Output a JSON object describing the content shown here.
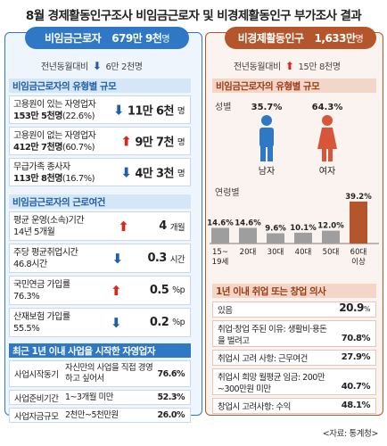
{
  "title": "8월 경제활동인구조사 비임금근로자 및 비경제활동인구 부가조사 결과",
  "left": {
    "header_label": "비임금근로자",
    "header_value": "679만 9천",
    "header_unit": "명",
    "yoy_label": "전년동월대비",
    "yoy_arrow": "⬇",
    "yoy_value": "6만 2천명",
    "section_types": "비임금근로자의 유형별 규모",
    "types": [
      {
        "label": "고용원이 있는 자영업자",
        "sub": "153만 5천명",
        "pct": "(22.6%)",
        "arrow": "⬇",
        "dir": "down",
        "value": "11만 6천",
        "unit": "명"
      },
      {
        "label": "고용원이 없는 자영업자",
        "sub": "412만 7천명",
        "pct": "(60.7%)",
        "arrow": "⬆",
        "dir": "up",
        "value": "9만 7천",
        "unit": "명"
      },
      {
        "label": "무급가족 종사자",
        "sub": "113만 8천명",
        "pct": "(16.7%)",
        "arrow": "⬇",
        "dir": "down",
        "value": "4만 3천",
        "unit": "명"
      }
    ],
    "section_conditions": "비임금근로자의 근로여건",
    "conditions": [
      {
        "label": "평균 운영(소속)기간",
        "sub": "14년 5개월",
        "arrow": "⬆",
        "dir": "up",
        "value": "4",
        "unit": "개월"
      },
      {
        "label": "주당 평균취업시간",
        "sub": "46.8시간",
        "arrow": "⬇",
        "dir": "down",
        "value": "0.3",
        "unit": "시간"
      },
      {
        "label": "국민연금 가입률",
        "sub": "76.3%",
        "arrow": "⬆",
        "dir": "up",
        "value": "0.5",
        "unit": "%p"
      },
      {
        "label": "산재보험 가입률",
        "sub": "55.5%",
        "arrow": "⬇",
        "dir": "down",
        "value": "0.2",
        "unit": "%p"
      }
    ],
    "section_recent": "최근 1년 이내 사업을 시작한 자영업자",
    "recent": [
      {
        "key": "사업시작동기",
        "value": "자신만의 사업을 직접 경영하고 싶어서",
        "pct": "76.6%"
      },
      {
        "key": "사업준비기간",
        "value": "1~3개월 미만",
        "pct": "52.3%"
      },
      {
        "key": "사업자금규모",
        "value": "2천만~5천만원",
        "pct": "26.0%"
      }
    ]
  },
  "right": {
    "header_label": "비경제활동인구",
    "header_value": "1,633만",
    "header_unit": "명",
    "yoy_label": "전년동월대비",
    "yoy_arrow": "⬆",
    "yoy_value": "15만 8천명",
    "section_types": "비임금근로자의 유형별 규모",
    "gender_label": "성별",
    "age_label": "연령별",
    "section_intent": "1년 이내 취업 또는 창업 의사",
    "intent": [
      {
        "a": "있음",
        "b": "20.9",
        "unit": "%"
      },
      {
        "a": "취업·창업 주된 이유: 생활비·용돈을 벌려고",
        "b": "70.8%",
        "unit": ""
      },
      {
        "a": "취업시 고려 사항: 근무여건",
        "b": "27.9%",
        "unit": ""
      },
      {
        "a": "취업시 희망 월평균 임금: 200만~300만원 미만",
        "b": "40.7%",
        "unit": ""
      },
      {
        "a": "창업시 고려사항: 수익",
        "b": "48.1%",
        "unit": ""
      }
    ]
  },
  "source": "<자료: 통계청>",
  "chart_data": [
    {
      "type": "bar",
      "title": "성별",
      "categories": [
        "남자",
        "여자"
      ],
      "values": [
        35.7,
        64.3
      ],
      "value_labels": [
        "35.7%",
        "64.3%"
      ],
      "colors": [
        "#2f78c6",
        "#d9553a"
      ]
    },
    {
      "type": "bar",
      "title": "연령별",
      "categories": [
        "15~19세",
        "20대",
        "30대",
        "40대",
        "50대",
        "60대 이상"
      ],
      "values": [
        14.6,
        14.6,
        9.6,
        10.1,
        12.0,
        39.2
      ],
      "value_labels": [
        "14.6%",
        "14.6%",
        "9.6%",
        "10.1%",
        "12.0%",
        "39.2%"
      ],
      "ylim": [
        0,
        40
      ],
      "bar_color": "#9e9e9e",
      "highlight_color": "#b5552b"
    }
  ]
}
